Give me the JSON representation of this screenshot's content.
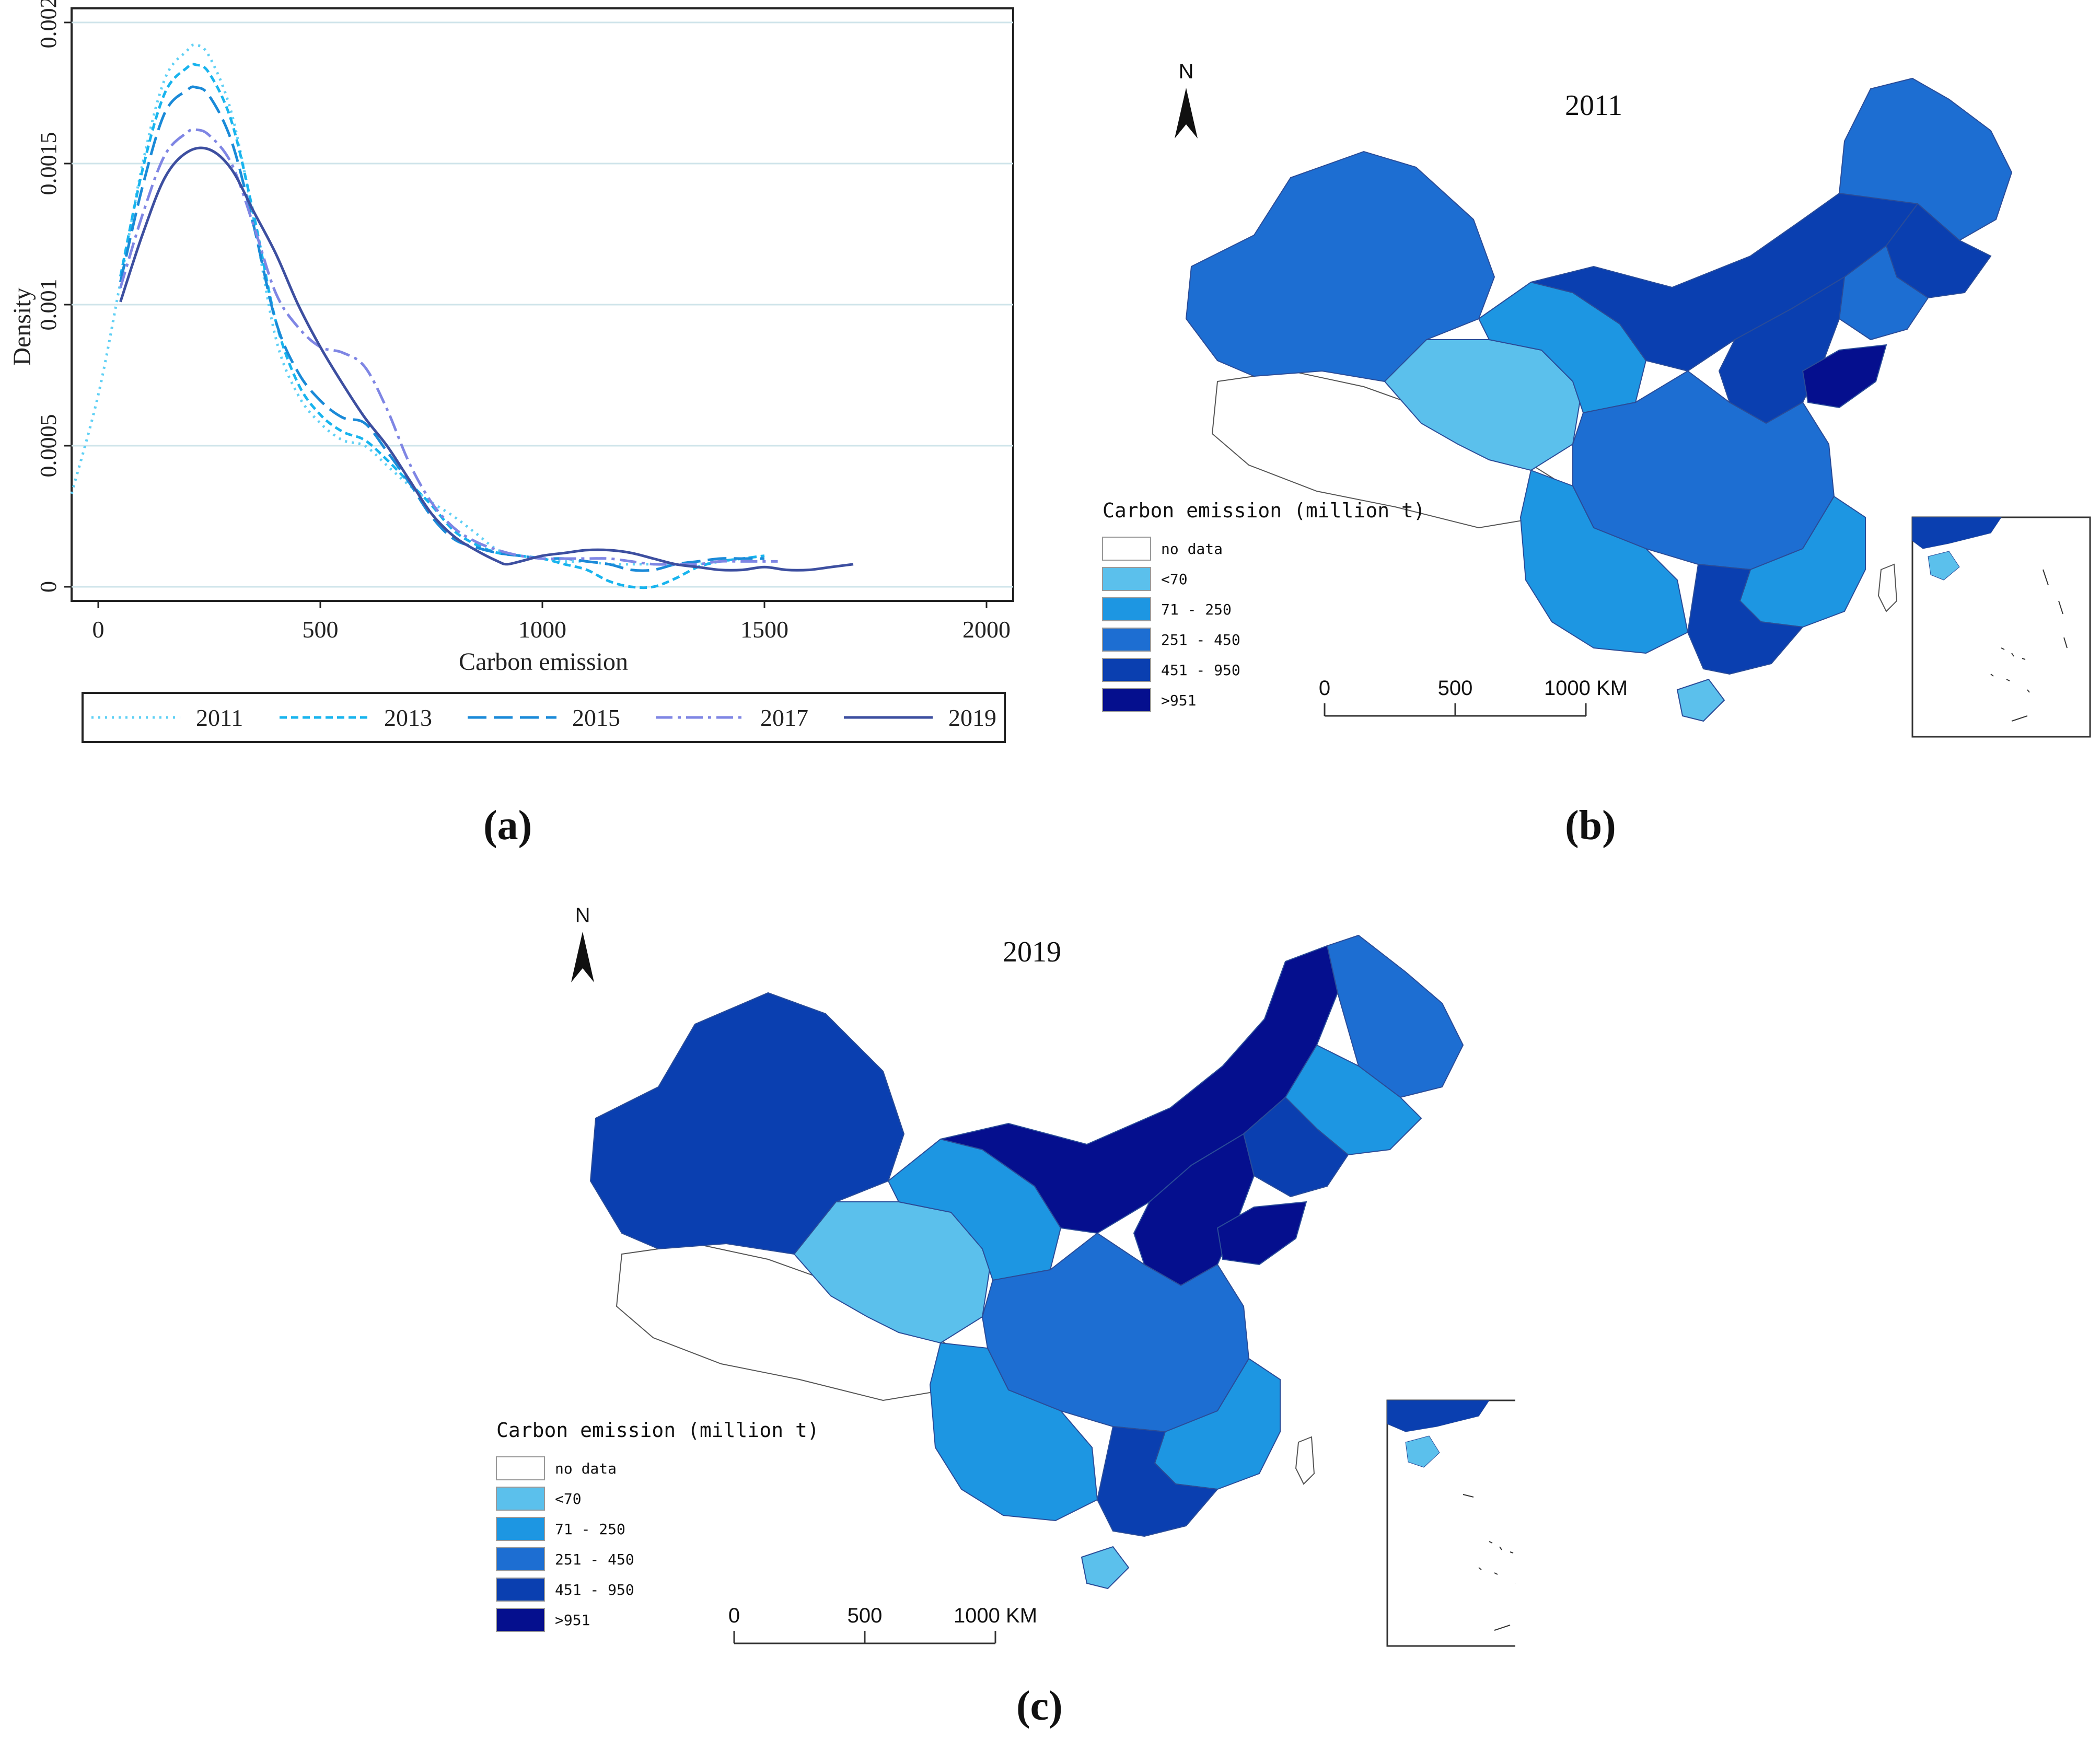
{
  "chart_data": [
    {
      "type": "line",
      "panel": "(a)",
      "xlabel": "Carbon emission",
      "ylabel": "Density",
      "xlim": [
        -60,
        2060
      ],
      "ylim": [
        -5e-05,
        0.00205
      ],
      "x_ticks": [
        "0",
        "500",
        "1000",
        "1500",
        "2000"
      ],
      "x_tick_values": [
        0,
        500,
        1000,
        1500,
        2000
      ],
      "y_ticks": [
        "0",
        "0.0005",
        "0.001",
        "0.0015",
        "0.002"
      ],
      "y_tick_values": [
        0,
        0.0005,
        0.001,
        0.0015,
        0.002
      ],
      "grid": true,
      "legend_position": "bottom",
      "series": [
        {
          "name": "2011",
          "color": "#5fd0f5",
          "dash": "dot",
          "x": [
            -60,
            0,
            50,
            100,
            150,
            200,
            220,
            250,
            300,
            350,
            400,
            450,
            500,
            550,
            600,
            650,
            700,
            750,
            800,
            850,
            900,
            950,
            1000,
            1050,
            1100,
            1150,
            1200,
            1250,
            1300,
            1350,
            1400,
            1450,
            1500
          ],
          "y": [
            0.00033,
            0.00068,
            0.00108,
            0.0015,
            0.0018,
            0.0019,
            0.00192,
            0.00188,
            0.00168,
            0.0013,
            0.00088,
            0.00068,
            0.00058,
            0.00052,
            0.0005,
            0.00043,
            0.00036,
            0.0003,
            0.00025,
            0.00019,
            0.00013,
            0.00011,
            0.0001,
            9e-05,
            9e-05,
            8e-05,
            8e-05,
            8e-05,
            8e-05,
            8e-05,
            9e-05,
            0.0001,
            0.00011
          ]
        },
        {
          "name": "2013",
          "color": "#18b4ee",
          "dash": "short-dash",
          "x": [
            50,
            100,
            150,
            200,
            220,
            250,
            300,
            350,
            400,
            450,
            500,
            550,
            600,
            650,
            700,
            750,
            800,
            850,
            900,
            950,
            1000,
            1050,
            1100,
            1150,
            1200,
            1250,
            1300,
            1350,
            1400,
            1450,
            1500
          ],
          "y": [
            0.0011,
            0.00148,
            0.00175,
            0.00184,
            0.00185,
            0.00182,
            0.00165,
            0.00132,
            0.00094,
            0.00072,
            0.00061,
            0.00055,
            0.00052,
            0.00045,
            0.00037,
            0.00029,
            0.0002,
            0.00015,
            0.00012,
            0.00011,
            0.0001,
            8e-05,
            6e-05,
            2e-05,
            0.0,
            0.0,
            3e-05,
            7e-05,
            9e-05,
            0.0001,
            0.00011
          ]
        },
        {
          "name": "2015",
          "color": "#1a8ad8",
          "dash": "long-dash",
          "x": [
            50,
            100,
            150,
            200,
            220,
            250,
            300,
            350,
            400,
            450,
            500,
            550,
            600,
            650,
            700,
            750,
            800,
            850,
            900,
            950,
            1000,
            1050,
            1100,
            1150,
            1200,
            1250,
            1300,
            1350,
            1400,
            1450,
            1500
          ],
          "y": [
            0.00108,
            0.00142,
            0.00168,
            0.00176,
            0.00177,
            0.00174,
            0.00158,
            0.00128,
            0.00094,
            0.00076,
            0.00066,
            0.0006,
            0.00058,
            0.00048,
            0.00037,
            0.00025,
            0.00017,
            0.00014,
            0.00012,
            0.00011,
            0.0001,
            0.0001,
            9e-05,
            8e-05,
            6e-05,
            6e-05,
            8e-05,
            9e-05,
            0.0001,
            0.0001,
            0.0001
          ]
        },
        {
          "name": "2017",
          "color": "#7f86e4",
          "dash": "dash-dot",
          "x": [
            50,
            100,
            150,
            200,
            220,
            250,
            300,
            350,
            400,
            450,
            500,
            550,
            600,
            650,
            700,
            750,
            800,
            850,
            900,
            950,
            1000,
            1050,
            1100,
            1150,
            1200,
            1250,
            1300,
            1350,
            1400,
            1450,
            1500,
            1530
          ],
          "y": [
            0.00106,
            0.00132,
            0.00153,
            0.00161,
            0.00162,
            0.0016,
            0.0015,
            0.00128,
            0.00104,
            0.00092,
            0.00085,
            0.00083,
            0.00078,
            0.00063,
            0.00044,
            0.0003,
            0.00021,
            0.00016,
            0.00013,
            0.00011,
            0.0001,
            0.0001,
            0.0001,
            0.0001,
            9e-05,
            8e-05,
            8e-05,
            8e-05,
            9e-05,
            9e-05,
            9e-05,
            9e-05
          ]
        },
        {
          "name": "2019",
          "color": "#3d4fa0",
          "dash": "solid",
          "x": [
            50,
            100,
            150,
            200,
            250,
            300,
            350,
            400,
            450,
            500,
            550,
            600,
            650,
            700,
            750,
            800,
            850,
            900,
            920,
            950,
            1000,
            1050,
            1100,
            1150,
            1200,
            1250,
            1300,
            1350,
            1400,
            1450,
            1500,
            1550,
            1600,
            1650,
            1700
          ],
          "y": [
            0.00101,
            0.00125,
            0.00145,
            0.00154,
            0.00155,
            0.00148,
            0.00133,
            0.00118,
            0.001,
            0.00085,
            0.00072,
            0.0006,
            0.0005,
            0.00038,
            0.00026,
            0.00018,
            0.00013,
            9e-05,
            8e-05,
            9e-05,
            0.00011,
            0.00012,
            0.00013,
            0.00013,
            0.00012,
            0.0001,
            8e-05,
            7e-05,
            6e-05,
            6e-05,
            7e-05,
            6e-05,
            6e-05,
            7e-05,
            8e-05
          ]
        }
      ]
    }
  ],
  "panels": {
    "a": {
      "label": "(a)"
    },
    "b": {
      "label": "(b)",
      "year": "2011"
    },
    "c": {
      "label": "(c)",
      "year": "2019"
    }
  },
  "map": {
    "north_label": "N",
    "legend_title": "Carbon emission (million t)",
    "legend": [
      {
        "label": "no data",
        "color": "#ffffff"
      },
      {
        "label": "<70",
        "color": "#5bc0ec"
      },
      {
        "label": "71 - 250",
        "color": "#1d96e2"
      },
      {
        "label": "251 - 450",
        "color": "#1d6ed2"
      },
      {
        "label": "451 - 950",
        "color": "#0a3fb0"
      },
      {
        "label": ">951",
        "color": "#050f8e"
      }
    ],
    "scale_labels": [
      "0",
      "500",
      "1000 KM"
    ]
  }
}
